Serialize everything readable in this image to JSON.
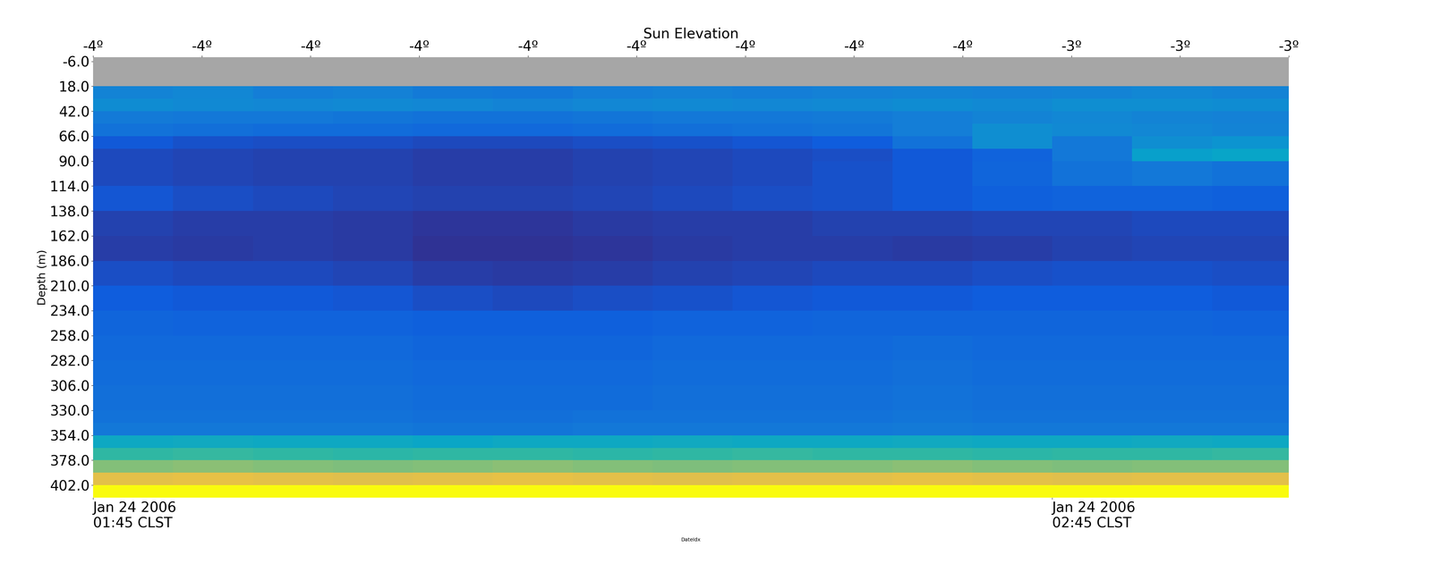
{
  "chart_data": {
    "type": "heatmap",
    "x_label": "DateIdx",
    "y_label": "Depth (m)",
    "x2_label": "Sun Elevation",
    "xlim": [
      0,
      74.8
    ],
    "xticks": [
      {
        "value": 0,
        "label": "Jan 24 2006\n01:45 CLST"
      },
      {
        "value": 60,
        "label": "Jan 24 2006\n02:45 CLST"
      }
    ],
    "x2lim": [
      0,
      74.8
    ],
    "x2ticks": [
      {
        "value": 0,
        "label": "-4º"
      },
      {
        "value": 6.8,
        "label": "-4º"
      },
      {
        "value": 13.6,
        "label": "-4º"
      },
      {
        "value": 20.4,
        "label": "-4º"
      },
      {
        "value": 27.2,
        "label": "-4º"
      },
      {
        "value": 34,
        "label": "-4º"
      },
      {
        "value": 40.8,
        "label": "-4º"
      },
      {
        "value": 47.6,
        "label": "-4º"
      },
      {
        "value": 54.4,
        "label": "-4º"
      },
      {
        "value": 61.2,
        "label": "-3º"
      },
      {
        "value": 68,
        "label": "-3º"
      },
      {
        "value": 74.8,
        "label": "-3º"
      }
    ],
    "ylim": [
      414,
      -10
    ],
    "yticks": [
      {
        "value": -6,
        "label": "-6.0"
      },
      {
        "value": 18,
        "label": "18.0"
      },
      {
        "value": 42,
        "label": "42.0"
      },
      {
        "value": 66,
        "label": "66.0"
      },
      {
        "value": 90,
        "label": "90.0"
      },
      {
        "value": 114,
        "label": "114.0"
      },
      {
        "value": 138,
        "label": "138.0"
      },
      {
        "value": 162,
        "label": "162.0"
      },
      {
        "value": 186,
        "label": "186.0"
      },
      {
        "value": 210,
        "label": "210.0"
      },
      {
        "value": 234,
        "label": "234.0"
      },
      {
        "value": 258,
        "label": "258.0"
      },
      {
        "value": 282,
        "label": "282.0"
      },
      {
        "value": 306,
        "label": "306.0"
      },
      {
        "value": 330,
        "label": "330.0"
      },
      {
        "value": 354,
        "label": "354.0"
      },
      {
        "value": 378,
        "label": "378.0"
      },
      {
        "value": 402,
        "label": "402.0"
      }
    ],
    "x_edges": [
      0,
      5,
      10,
      15,
      20,
      25,
      30,
      35,
      40,
      45,
      50,
      55,
      60,
      65,
      70,
      74.8
    ],
    "y_edges": [
      -10,
      18,
      30,
      42,
      54,
      66,
      78,
      90,
      114,
      138,
      162,
      186,
      210,
      234,
      258,
      282,
      306,
      330,
      342,
      354,
      366,
      378,
      390,
      402,
      414
    ],
    "zlim": [
      0,
      1
    ],
    "cells": [
      [
        null,
        null,
        null,
        null,
        null,
        null,
        null,
        null,
        null,
        null,
        null,
        null,
        null,
        null,
        null
      ],
      [
        0.26,
        0.27,
        0.24,
        0.25,
        0.23,
        0.22,
        0.24,
        0.25,
        0.24,
        0.25,
        0.26,
        0.25,
        0.26,
        0.27,
        0.26
      ],
      [
        0.29,
        0.28,
        0.27,
        0.28,
        0.27,
        0.26,
        0.27,
        0.28,
        0.27,
        0.28,
        0.29,
        0.28,
        0.3,
        0.3,
        0.29
      ],
      [
        0.23,
        0.22,
        0.22,
        0.21,
        0.2,
        0.2,
        0.21,
        0.22,
        0.22,
        0.23,
        0.24,
        0.26,
        0.27,
        0.26,
        0.25
      ],
      [
        0.2,
        0.19,
        0.18,
        0.18,
        0.17,
        0.17,
        0.18,
        0.19,
        0.2,
        0.21,
        0.24,
        0.3,
        0.28,
        0.27,
        0.26
      ],
      [
        0.12,
        0.1,
        0.09,
        0.09,
        0.08,
        0.08,
        0.09,
        0.1,
        0.11,
        0.13,
        0.2,
        0.3,
        0.22,
        0.3,
        0.32
      ],
      [
        0.08,
        0.07,
        0.06,
        0.06,
        0.05,
        0.05,
        0.06,
        0.07,
        0.08,
        0.09,
        0.12,
        0.15,
        0.22,
        0.36,
        0.38
      ],
      [
        0.08,
        0.07,
        0.06,
        0.06,
        0.05,
        0.05,
        0.06,
        0.07,
        0.08,
        0.1,
        0.12,
        0.16,
        0.2,
        0.22,
        0.2
      ],
      [
        0.11,
        0.09,
        0.08,
        0.07,
        0.06,
        0.06,
        0.07,
        0.08,
        0.09,
        0.1,
        0.12,
        0.14,
        0.15,
        0.15,
        0.14
      ],
      [
        0.06,
        0.05,
        0.05,
        0.04,
        0.03,
        0.03,
        0.04,
        0.05,
        0.05,
        0.06,
        0.06,
        0.07,
        0.07,
        0.08,
        0.08
      ],
      [
        0.05,
        0.04,
        0.05,
        0.04,
        0.02,
        0.02,
        0.03,
        0.04,
        0.05,
        0.05,
        0.04,
        0.05,
        0.06,
        0.07,
        0.07
      ],
      [
        0.09,
        0.08,
        0.08,
        0.07,
        0.05,
        0.04,
        0.05,
        0.06,
        0.07,
        0.08,
        0.08,
        0.09,
        0.1,
        0.1,
        0.09
      ],
      [
        0.13,
        0.12,
        0.12,
        0.11,
        0.09,
        0.08,
        0.09,
        0.1,
        0.11,
        0.12,
        0.12,
        0.13,
        0.13,
        0.13,
        0.12
      ],
      [
        0.16,
        0.15,
        0.15,
        0.15,
        0.14,
        0.14,
        0.14,
        0.15,
        0.15,
        0.16,
        0.16,
        0.16,
        0.16,
        0.16,
        0.15
      ],
      [
        0.17,
        0.17,
        0.17,
        0.17,
        0.16,
        0.16,
        0.16,
        0.17,
        0.17,
        0.17,
        0.18,
        0.17,
        0.17,
        0.17,
        0.17
      ],
      [
        0.18,
        0.18,
        0.18,
        0.18,
        0.17,
        0.17,
        0.17,
        0.18,
        0.18,
        0.18,
        0.19,
        0.18,
        0.18,
        0.18,
        0.18
      ],
      [
        0.19,
        0.19,
        0.19,
        0.19,
        0.18,
        0.18,
        0.18,
        0.19,
        0.19,
        0.19,
        0.2,
        0.19,
        0.19,
        0.19,
        0.19
      ],
      [
        0.2,
        0.2,
        0.2,
        0.2,
        0.19,
        0.19,
        0.2,
        0.2,
        0.2,
        0.2,
        0.21,
        0.2,
        0.2,
        0.2,
        0.2
      ],
      [
        0.22,
        0.22,
        0.22,
        0.22,
        0.21,
        0.21,
        0.22,
        0.22,
        0.22,
        0.22,
        0.23,
        0.22,
        0.22,
        0.22,
        0.22
      ],
      [
        0.4,
        0.41,
        0.4,
        0.4,
        0.39,
        0.4,
        0.4,
        0.41,
        0.4,
        0.4,
        0.41,
        0.4,
        0.4,
        0.41,
        0.4
      ],
      [
        0.5,
        0.51,
        0.5,
        0.49,
        0.5,
        0.5,
        0.49,
        0.5,
        0.51,
        0.5,
        0.5,
        0.49,
        0.5,
        0.5,
        0.51
      ],
      [
        0.62,
        0.63,
        0.62,
        0.61,
        0.62,
        0.63,
        0.62,
        0.61,
        0.62,
        0.62,
        0.63,
        0.62,
        0.61,
        0.62,
        0.62
      ],
      [
        0.8,
        0.81,
        0.8,
        0.79,
        0.8,
        0.81,
        0.8,
        0.79,
        0.8,
        0.8,
        0.81,
        0.8,
        0.79,
        0.8,
        0.8
      ],
      [
        1.0,
        1.0,
        1.0,
        1.0,
        1.0,
        1.0,
        1.0,
        1.0,
        1.0,
        1.0,
        1.0,
        1.0,
        1.0,
        1.0,
        1.0
      ]
    ]
  }
}
